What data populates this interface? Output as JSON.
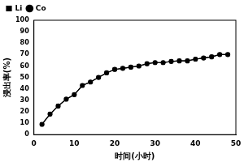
{
  "chart_data": {
    "type": "line",
    "x_label": "时间(小时)",
    "y_label": "浸出率(%)",
    "x": [
      2,
      4,
      6,
      8,
      10,
      12,
      14,
      16,
      18,
      20,
      22,
      24,
      26,
      28,
      30,
      32,
      34,
      36,
      38,
      40,
      42,
      44,
      46,
      48
    ],
    "series": [
      {
        "name": "Li",
        "color": "#000000",
        "marker": "square",
        "line_style": "solid",
        "values": [
          9,
          18,
          25,
          31,
          35,
          43,
          46,
          50,
          54,
          57,
          58,
          59,
          60,
          62,
          63,
          63,
          64,
          64.5,
          64.5,
          66,
          67,
          68,
          70,
          70
        ]
      },
      {
        "name": "Co",
        "color": "#000000",
        "marker": "circle",
        "line_style": "solid",
        "values": [
          9,
          18,
          25,
          31,
          35,
          43,
          46,
          50,
          54,
          57,
          58,
          59,
          60,
          62,
          63,
          63,
          64,
          64.5,
          64.5,
          66,
          67,
          68,
          70,
          70
        ]
      }
    ],
    "xlim": [
      0,
      50
    ],
    "xticks": [
      0,
      10,
      20,
      30,
      40,
      50
    ],
    "ylim": [
      0,
      100
    ],
    "yticks": [
      0,
      10,
      20,
      30,
      40,
      50,
      60,
      70,
      80,
      90,
      100
    ],
    "grid": false,
    "legend": "top-left"
  }
}
